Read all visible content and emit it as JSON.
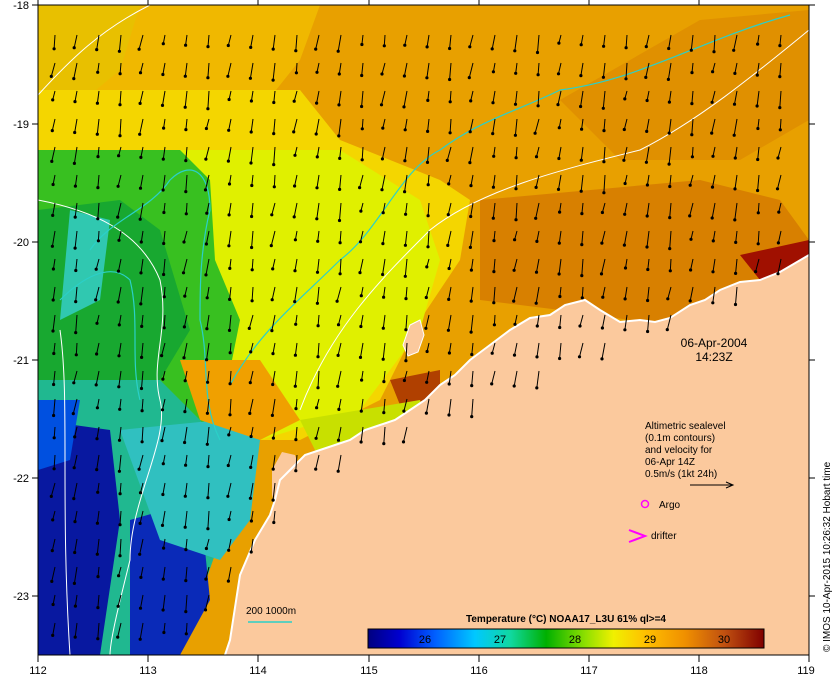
{
  "map": {
    "date": "06-Apr-2004",
    "time": "14:23Z",
    "legend_lines": [
      "Altimetric sealevel",
      "(0.1m contours)",
      "and velocity for",
      "06-Apr 14Z",
      "0.5m/s (1kt 24h)"
    ],
    "argo_label": "Argo",
    "drifter_label": "drifter",
    "isobath_label": "200  1000m",
    "colorbar_title": "Temperature (°C) NOAA17_L3U 61% ql>=4",
    "colorbar_ticks": [
      "26",
      "27",
      "28",
      "29",
      "30"
    ],
    "credit": "© IMOS 10-Apr-2015 10:26:32 Hobart time",
    "x_ticks": [
      "112",
      "113",
      "114",
      "115",
      "116",
      "117",
      "118",
      "119"
    ],
    "y_ticks": [
      "-18",
      "-19",
      "-20",
      "-21",
      "-22",
      "-23"
    ],
    "colors": {
      "land": "#fbc99d",
      "isobath": "#2bd0c8",
      "argo": "#ff00ff",
      "drifter": "#ff00ff"
    }
  }
}
